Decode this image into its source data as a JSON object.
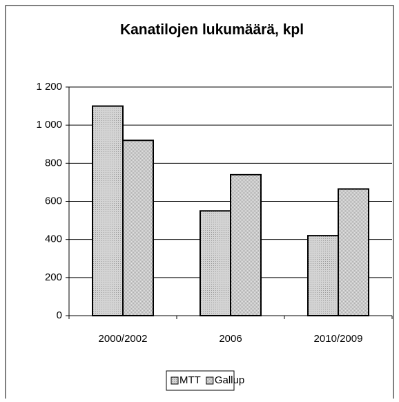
{
  "chart_data": {
    "type": "bar",
    "title": "Kanatilojen lukumäärä, kpl",
    "categories": [
      "2000/2002",
      "2006",
      "2010/2009"
    ],
    "series": [
      {
        "name": "MTT",
        "color": "#d4d4d4",
        "values": [
          1100,
          550,
          420
        ]
      },
      {
        "name": "Gallup",
        "color": "#e8e8e8",
        "values": [
          920,
          740,
          665
        ]
      }
    ],
    "ylim": [
      0,
      1200
    ],
    "yticks": [
      0,
      200,
      400,
      600,
      800,
      {
        "value": 1000,
        "label": "1 000"
      },
      {
        "value": 1200,
        "label": "1 200"
      }
    ],
    "grid": true,
    "legend": "bottom"
  }
}
